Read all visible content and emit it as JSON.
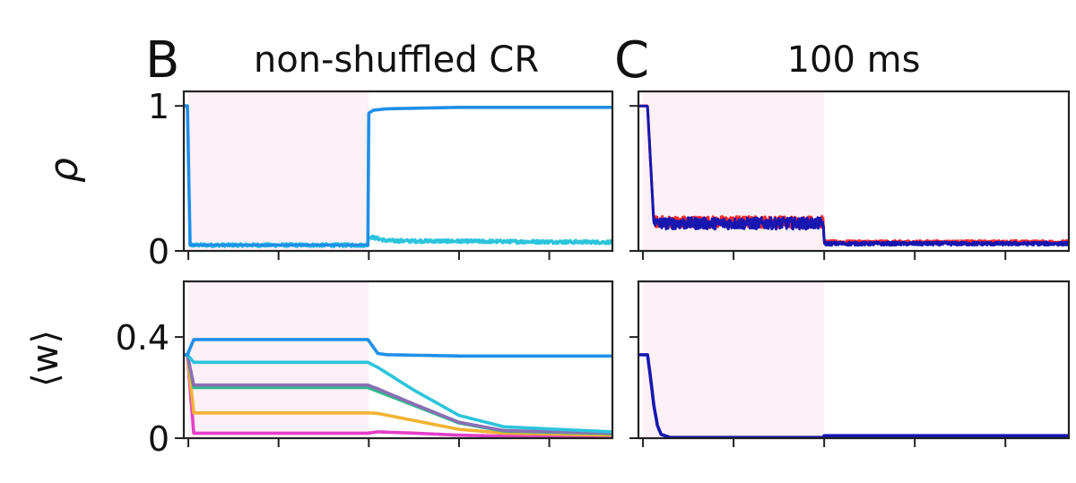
{
  "panels": [
    {
      "letter": "B",
      "title": "non-shuffled CR"
    },
    {
      "letter": "C",
      "title": "100 ms"
    }
  ],
  "ylabels": {
    "rho": "ρ",
    "w": "⟨w⟩"
  },
  "yticks": {
    "rho": [
      {
        "value": 0,
        "label": "0"
      },
      {
        "value": 1,
        "label": "1"
      }
    ],
    "w": [
      {
        "value": 0,
        "label": "0"
      },
      {
        "value": 0.4,
        "label": "0.4"
      }
    ]
  },
  "colors": {
    "shade": "#fdf0f6",
    "blue": "#1f8fe8",
    "cyan": "#2cc4dc",
    "green": "#2fb98a",
    "purple": "#8a6fb5",
    "orange": "#f2b233",
    "magenta": "#e43fc8",
    "navy": "#1616b0",
    "red": "#ff2a2a"
  },
  "chart_data": [
    {
      "type": "line",
      "panel": "B",
      "quantity": "rho",
      "title": "non-shuffled CR",
      "ylabel": "ρ",
      "xlim": [
        -0.05,
        4.7
      ],
      "ylim": [
        0,
        1.1
      ],
      "shaded_x": [
        0,
        2
      ],
      "series": [
        {
          "color": "#2cc4dc",
          "noisy": true,
          "x": [
            -0.05,
            -0.01,
            0.02,
            1.99,
            2.0,
            2.2,
            4.7
          ],
          "y": [
            1.0,
            1.0,
            0.04,
            0.04,
            0.1,
            0.07,
            0.06
          ]
        },
        {
          "color": "#1f8fe8",
          "noisy": false,
          "x": [
            -0.05,
            -0.01,
            0.02,
            1.99,
            2.0,
            2.05,
            2.2,
            3.0,
            4.7
          ],
          "y": [
            1.0,
            1.0,
            0.04,
            0.04,
            0.95,
            0.97,
            0.98,
            0.99,
            0.99
          ]
        }
      ]
    },
    {
      "type": "line",
      "panel": "C",
      "quantity": "rho",
      "title": "100 ms",
      "ylabel": "",
      "xlim": [
        -0.05,
        4.7
      ],
      "ylim": [
        0,
        1.1
      ],
      "shaded_x": [
        0,
        2
      ],
      "series": [
        {
          "color": "#ff2a2a",
          "noisy": true,
          "x": [
            -0.05,
            0.05,
            0.12,
            1.99,
            2.0,
            4.7
          ],
          "y": [
            1.0,
            1.0,
            0.2,
            0.2,
            0.06,
            0.06
          ]
        },
        {
          "color": "#1616b0",
          "noisy": true,
          "x": [
            -0.05,
            0.05,
            0.12,
            1.99,
            2.0,
            4.7
          ],
          "y": [
            1.0,
            1.0,
            0.19,
            0.19,
            0.05,
            0.05
          ]
        }
      ]
    },
    {
      "type": "line",
      "panel": "B",
      "quantity": "w",
      "ylabel": "⟨w⟩",
      "xlim": [
        -0.05,
        4.7
      ],
      "ylim": [
        0,
        0.62
      ],
      "shaded_x": [
        0,
        2
      ],
      "series": [
        {
          "color": "#e43fc8",
          "noisy": false,
          "x": [
            -0.05,
            -0.01,
            0.06,
            1.99,
            2.1,
            2.5,
            3.0,
            3.5,
            4.7
          ],
          "y": [
            0.33,
            0.33,
            0.02,
            0.02,
            0.025,
            0.02,
            0.012,
            0.008,
            0.006
          ]
        },
        {
          "color": "#f2b233",
          "noisy": false,
          "x": [
            -0.05,
            -0.01,
            0.06,
            1.99,
            2.1,
            2.5,
            3.0,
            3.5,
            4.7
          ],
          "y": [
            0.33,
            0.33,
            0.1,
            0.1,
            0.098,
            0.07,
            0.035,
            0.02,
            0.012
          ]
        },
        {
          "color": "#2fb98a",
          "noisy": false,
          "x": [
            -0.05,
            -0.01,
            0.06,
            1.99,
            2.1,
            2.5,
            3.0,
            3.5,
            4.7
          ],
          "y": [
            0.33,
            0.33,
            0.2,
            0.2,
            0.185,
            0.13,
            0.06,
            0.028,
            0.018
          ]
        },
        {
          "color": "#8a6fb5",
          "noisy": false,
          "x": [
            -0.05,
            -0.01,
            0.06,
            1.99,
            2.1,
            2.5,
            3.0,
            3.5,
            4.7
          ],
          "y": [
            0.33,
            0.33,
            0.21,
            0.21,
            0.195,
            0.135,
            0.063,
            0.03,
            0.02
          ]
        },
        {
          "color": "#2cc4dc",
          "noisy": false,
          "x": [
            -0.05,
            -0.01,
            0.06,
            1.99,
            2.1,
            2.5,
            3.0,
            3.5,
            4.7
          ],
          "y": [
            0.33,
            0.33,
            0.3,
            0.3,
            0.28,
            0.19,
            0.09,
            0.045,
            0.025
          ]
        },
        {
          "color": "#1f8fe8",
          "noisy": false,
          "x": [
            -0.05,
            -0.01,
            0.06,
            1.99,
            2.03,
            2.1,
            2.2,
            3.0,
            4.7
          ],
          "y": [
            0.33,
            0.33,
            0.39,
            0.39,
            0.37,
            0.335,
            0.33,
            0.325,
            0.325
          ]
        }
      ]
    },
    {
      "type": "line",
      "panel": "C",
      "quantity": "w",
      "ylabel": "",
      "xlim": [
        -0.05,
        4.7
      ],
      "ylim": [
        0,
        0.62
      ],
      "shaded_x": [
        0,
        2
      ],
      "series": [
        {
          "color": "#1616b0",
          "noisy": false,
          "x": [
            -0.05,
            0.05,
            0.08,
            0.12,
            0.16,
            0.2,
            0.3,
            1.99,
            2.0,
            4.7
          ],
          "y": [
            0.33,
            0.33,
            0.25,
            0.13,
            0.05,
            0.015,
            0.003,
            0.003,
            0.01,
            0.01
          ]
        }
      ]
    }
  ]
}
